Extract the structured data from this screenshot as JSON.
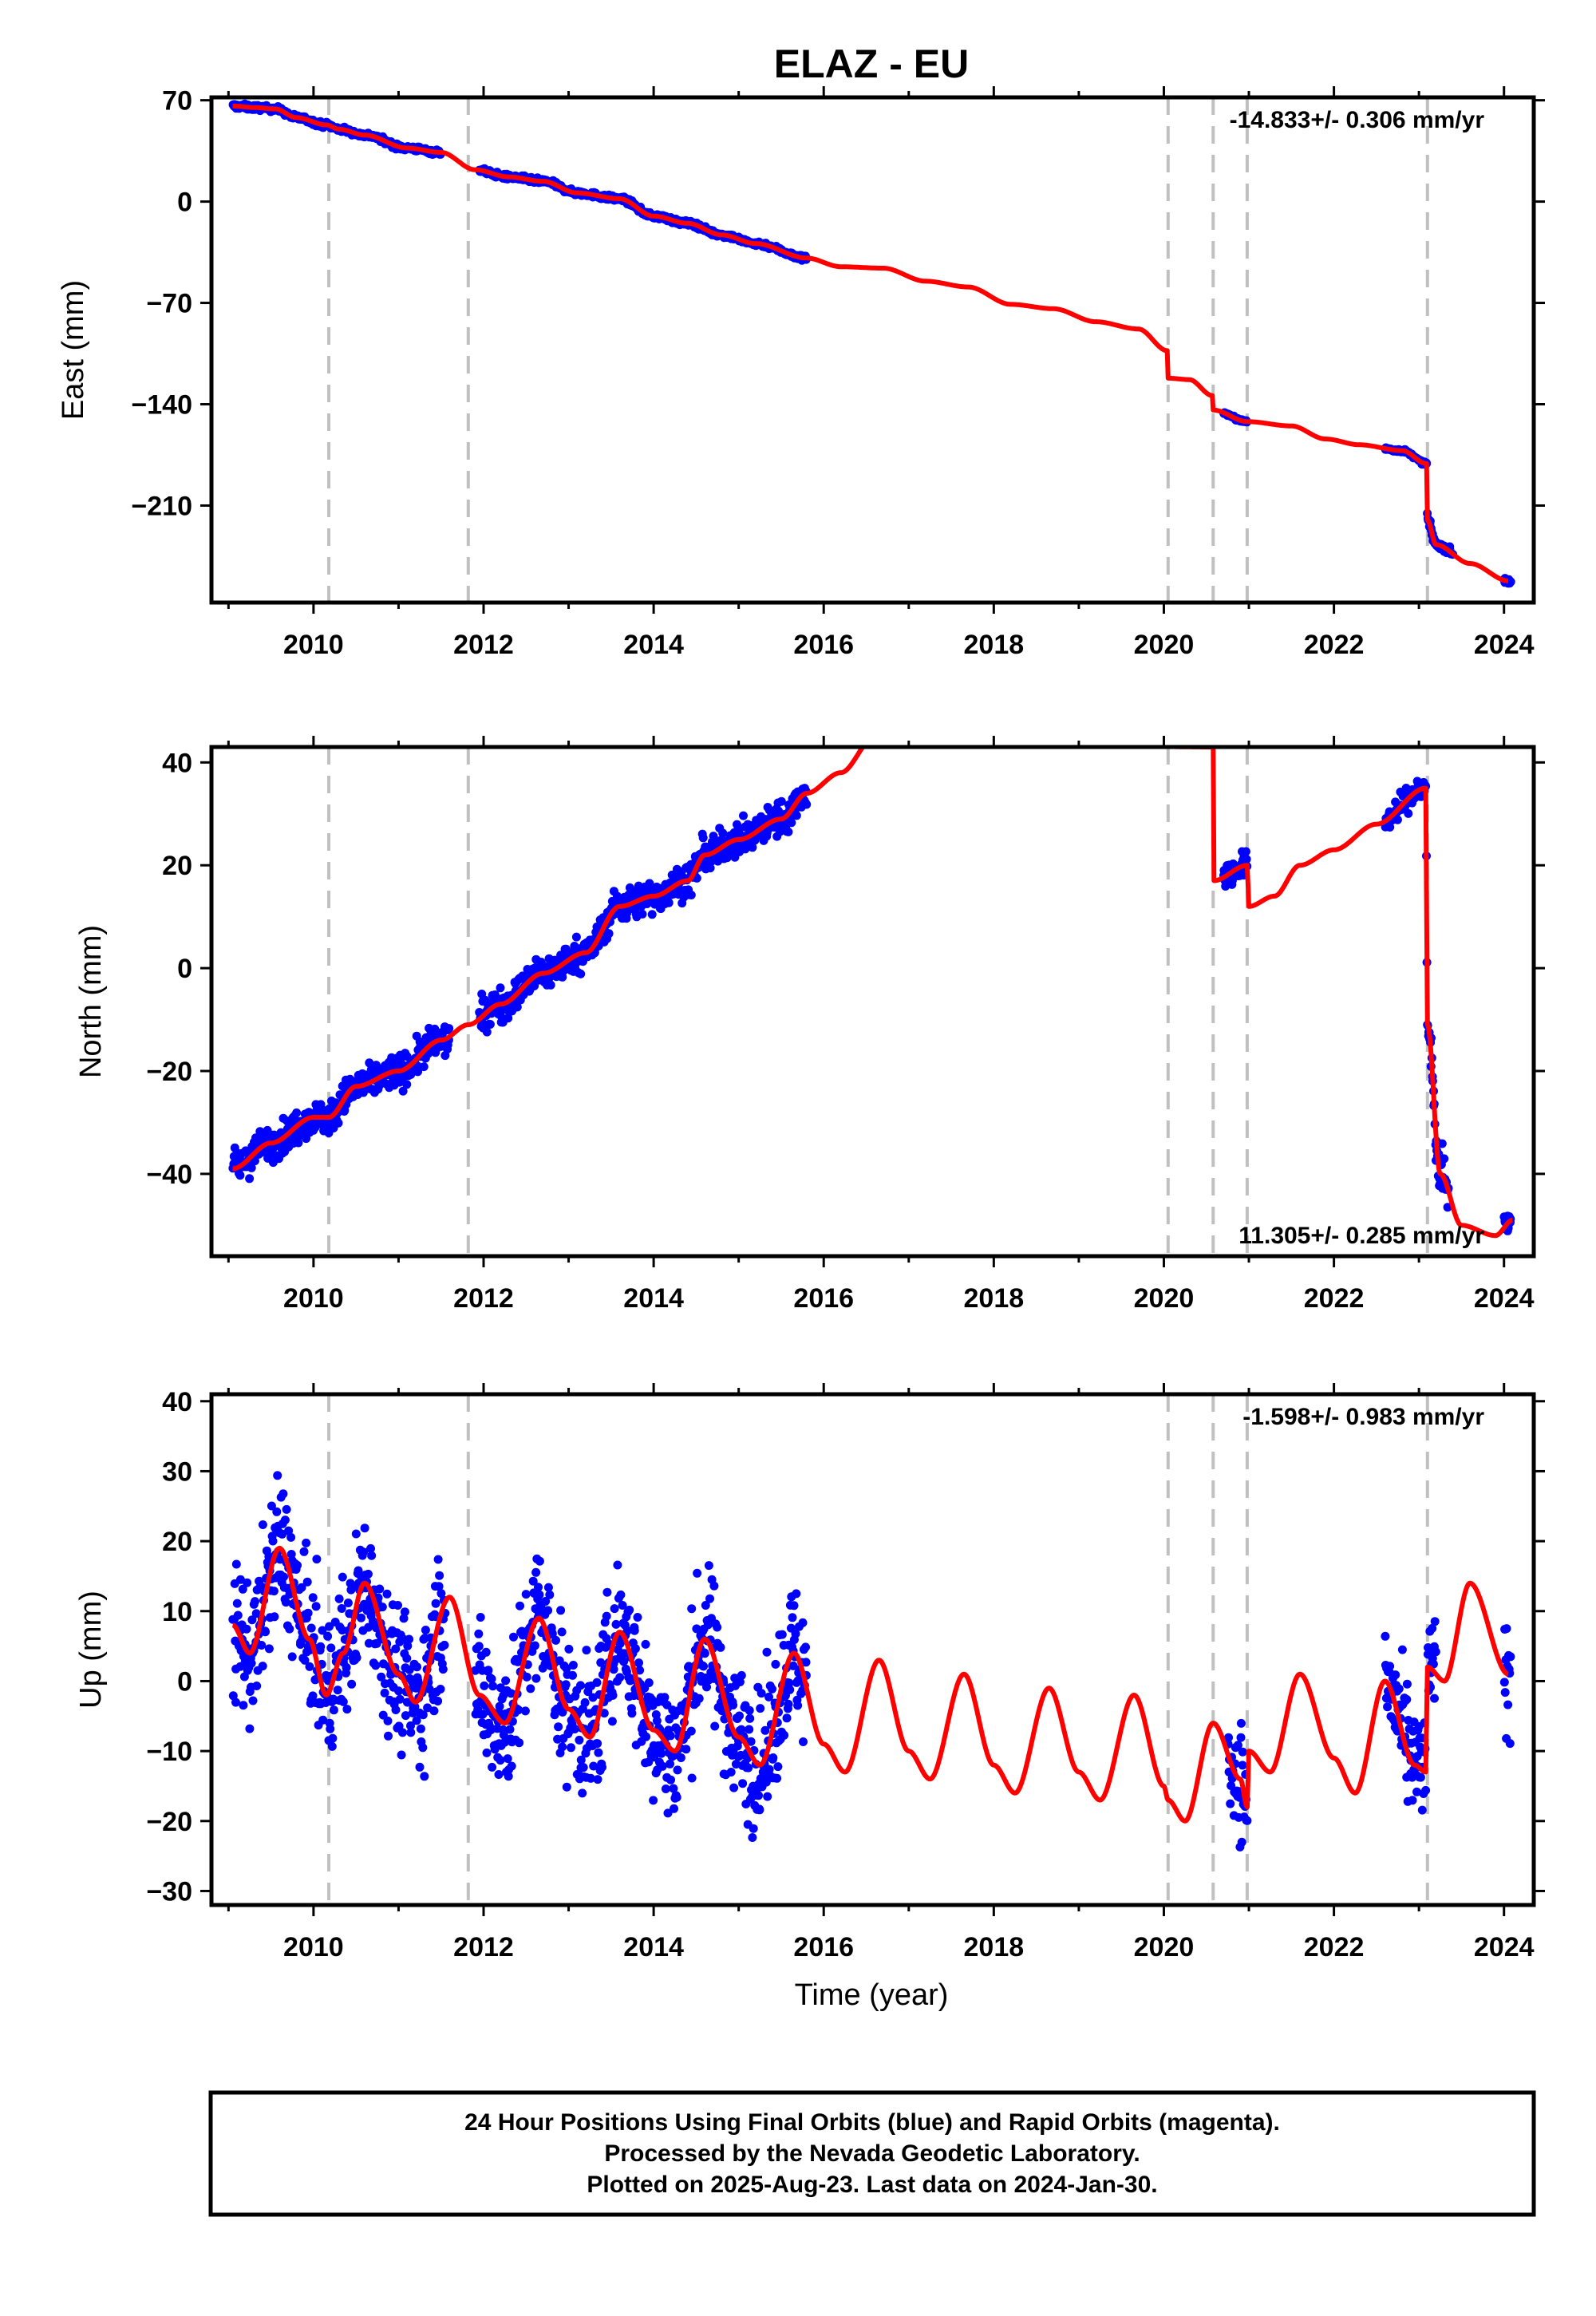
{
  "chart_data": {
    "title": "ELAZ - EU",
    "xlabel": "Time (year)",
    "xlim": [
      2008.8,
      2024.35
    ],
    "x_ticks": [
      2010,
      2012,
      2014,
      2016,
      2018,
      2020,
      2022,
      2024
    ],
    "event_lines": [
      2010.18,
      2011.82,
      2020.05,
      2020.58,
      2020.98,
      2023.1
    ],
    "colors": {
      "data": "#0000ff",
      "model": "#ff0000",
      "events": "#c0c0c0"
    },
    "panels": [
      {
        "type": "scatter",
        "id": "east",
        "ylabel": "East (mm)",
        "ylim": [
          -277,
          72
        ],
        "y_ticks": [
          70,
          0,
          -70,
          -140,
          -210
        ],
        "rate": "-14.833+/- 0.306 mm/yr",
        "rate_position": "top-right",
        "model_points": [
          [
            2009.05,
            66
          ],
          [
            2009.3,
            65
          ],
          [
            2009.55,
            64
          ],
          [
            2009.8,
            58
          ],
          [
            2010.15,
            53
          ],
          [
            2010.3,
            50
          ],
          [
            2010.6,
            46
          ],
          [
            2011.1,
            37
          ],
          [
            2011.5,
            34
          ],
          [
            2011.9,
            22
          ],
          [
            2012.3,
            17
          ],
          [
            2012.7,
            14
          ],
          [
            2013.1,
            6
          ],
          [
            2013.6,
            2
          ],
          [
            2014.0,
            -10
          ],
          [
            2014.4,
            -15
          ],
          [
            2014.8,
            -23
          ],
          [
            2015.2,
            -29
          ],
          [
            2015.8,
            -39
          ],
          [
            2016.2,
            -45
          ],
          [
            2016.7,
            -46
          ],
          [
            2017.2,
            -55
          ],
          [
            2017.7,
            -59
          ],
          [
            2018.2,
            -71
          ],
          [
            2018.7,
            -74
          ],
          [
            2019.2,
            -83
          ],
          [
            2019.7,
            -88
          ],
          [
            2020.04,
            -103
          ],
          [
            2020.05,
            -122
          ],
          [
            2020.3,
            -123
          ],
          [
            2020.57,
            -134
          ],
          [
            2020.58,
            -144
          ],
          [
            2020.98,
            -152
          ],
          [
            2021.5,
            -155
          ],
          [
            2021.9,
            -164
          ],
          [
            2022.3,
            -168
          ],
          [
            2022.8,
            -172
          ],
          [
            2023.09,
            -181
          ],
          [
            2023.1,
            -220
          ],
          [
            2023.2,
            -237
          ],
          [
            2023.6,
            -250
          ],
          [
            2024.05,
            -262
          ]
        ],
        "data_segments": [
          [
            2009.05,
            2011.5,
            0.9
          ],
          [
            2011.95,
            2015.8,
            0.9
          ],
          [
            2020.7,
            2020.98,
            0.5
          ],
          [
            2022.6,
            2023.1,
            0.5
          ],
          [
            2023.1,
            2023.4,
            1.2
          ],
          [
            2024.0,
            2024.08,
            1.0
          ]
        ]
      },
      {
        "type": "scatter",
        "id": "north",
        "ylabel": "North (mm)",
        "ylim": [
          -56,
          43
        ],
        "y_ticks": [
          40,
          20,
          0,
          -20,
          -40
        ],
        "rate": "11.305+/- 0.285 mm/yr",
        "rate_position": "bottom-right",
        "model_points": [
          [
            2009.05,
            -39
          ],
          [
            2009.5,
            -34
          ],
          [
            2010.0,
            -29
          ],
          [
            2010.18,
            -29
          ],
          [
            2010.5,
            -23
          ],
          [
            2011.0,
            -20
          ],
          [
            2011.5,
            -14
          ],
          [
            2011.82,
            -11
          ],
          [
            2012.2,
            -7
          ],
          [
            2012.7,
            -1
          ],
          [
            2013.2,
            3
          ],
          [
            2013.6,
            12
          ],
          [
            2014.0,
            14
          ],
          [
            2014.4,
            17
          ],
          [
            2014.6,
            22
          ],
          [
            2015.0,
            25
          ],
          [
            2015.5,
            29
          ],
          [
            2015.8,
            34
          ],
          [
            2016.2,
            38
          ],
          [
            2016.6,
            45
          ],
          [
            2020.58,
            43
          ],
          [
            2020.585,
            17
          ],
          [
            2020.98,
            20
          ],
          [
            2021.0,
            12
          ],
          [
            2021.3,
            14
          ],
          [
            2021.6,
            20
          ],
          [
            2022.0,
            23
          ],
          [
            2022.5,
            28
          ],
          [
            2023.08,
            35
          ],
          [
            2023.1,
            -11
          ],
          [
            2023.25,
            -40
          ],
          [
            2023.5,
            -50
          ],
          [
            2023.9,
            -52
          ],
          [
            2024.1,
            -49
          ]
        ],
        "data_segments": [
          [
            2009.05,
            2011.6,
            1.6
          ],
          [
            2011.95,
            2015.8,
            1.6
          ],
          [
            2020.7,
            2020.98,
            1.3
          ],
          [
            2022.6,
            2023.1,
            1.3
          ],
          [
            2023.1,
            2023.35,
            2.5
          ],
          [
            2024.0,
            2024.08,
            1.0
          ]
        ]
      },
      {
        "type": "scatter",
        "id": "up",
        "ylabel": "Up (mm)",
        "ylim": [
          -32,
          41
        ],
        "y_ticks": [
          40,
          30,
          20,
          10,
          0,
          -10,
          -20,
          -30
        ],
        "rate": "-1.598+/- 0.983 mm/yr",
        "rate_position": "top-right",
        "model_points": [
          [
            2009.05,
            8
          ],
          [
            2009.25,
            4
          ],
          [
            2009.6,
            19
          ],
          [
            2009.95,
            6
          ],
          [
            2010.15,
            -2
          ],
          [
            2010.35,
            4
          ],
          [
            2010.6,
            14
          ],
          [
            2011.0,
            1
          ],
          [
            2011.2,
            -3
          ],
          [
            2011.6,
            12
          ],
          [
            2011.95,
            -2
          ],
          [
            2012.25,
            -6
          ],
          [
            2012.65,
            9
          ],
          [
            2013.0,
            -4
          ],
          [
            2013.25,
            -8
          ],
          [
            2013.6,
            7
          ],
          [
            2014.0,
            -7
          ],
          [
            2014.25,
            -10
          ],
          [
            2014.6,
            6
          ],
          [
            2015.0,
            -8
          ],
          [
            2015.25,
            -12
          ],
          [
            2015.65,
            4
          ],
          [
            2016.0,
            -9
          ],
          [
            2016.25,
            -13
          ],
          [
            2016.65,
            3
          ],
          [
            2017.0,
            -10
          ],
          [
            2017.25,
            -14
          ],
          [
            2017.65,
            1
          ],
          [
            2018.0,
            -12
          ],
          [
            2018.25,
            -16
          ],
          [
            2018.65,
            -1
          ],
          [
            2019.0,
            -13
          ],
          [
            2019.25,
            -17
          ],
          [
            2019.65,
            -2
          ],
          [
            2020.0,
            -15
          ],
          [
            2020.05,
            -17
          ],
          [
            2020.25,
            -20
          ],
          [
            2020.58,
            -6
          ],
          [
            2020.9,
            -14
          ],
          [
            2020.98,
            -18
          ],
          [
            2021.0,
            -10
          ],
          [
            2021.25,
            -13
          ],
          [
            2021.6,
            1
          ],
          [
            2022.0,
            -11
          ],
          [
            2022.25,
            -16
          ],
          [
            2022.6,
            0
          ],
          [
            2022.95,
            -12
          ],
          [
            2023.08,
            -13
          ],
          [
            2023.1,
            2
          ],
          [
            2023.3,
            0
          ],
          [
            2023.6,
            14
          ],
          [
            2024.05,
            1
          ]
        ],
        "data_segments": [
          [
            2009.05,
            2011.55,
            5.0
          ],
          [
            2011.9,
            2015.8,
            5.0
          ],
          [
            2020.75,
            2020.98,
            4.0
          ],
          [
            2022.6,
            2023.08,
            4.0
          ],
          [
            2023.1,
            2023.2,
            4.0
          ],
          [
            2024.0,
            2024.08,
            4.0
          ]
        ]
      }
    ]
  },
  "footer": {
    "line1": "24 Hour Positions Using Final Orbits (blue) and Rapid Orbits (magenta).",
    "line2": "Processed by the Nevada Geodetic Laboratory.",
    "line3": "Plotted on 2025-Aug-23. Last data on 2024-Jan-30."
  }
}
